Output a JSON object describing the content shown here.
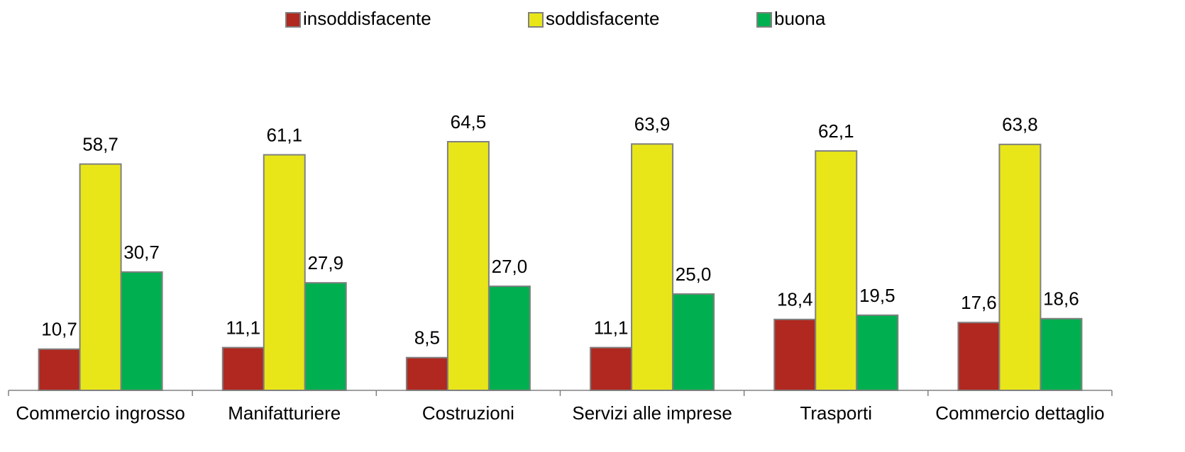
{
  "chart_data": {
    "type": "bar",
    "categories": [
      "Commercio ingrosso",
      "Manifatturiere",
      "Costruzioni",
      "Servizi alle imprese",
      "Trasporti",
      "Commercio dettaglio"
    ],
    "series": [
      {
        "name": "insoddisfacente",
        "color": "#b0281f",
        "values": [
          10.7,
          11.1,
          8.5,
          11.1,
          18.4,
          17.6
        ],
        "value_labels": [
          "10,7",
          "11,1",
          "8,5",
          "11,1",
          "18,4",
          "17,6"
        ]
      },
      {
        "name": "soddisfacente",
        "color": "#e8e619",
        "values": [
          58.7,
          61.1,
          64.5,
          63.9,
          62.1,
          63.8
        ],
        "value_labels": [
          "58,7",
          "61,1",
          "64,5",
          "63,9",
          "62,1",
          "63,8"
        ]
      },
      {
        "name": "buona",
        "color": "#00b050",
        "values": [
          30.7,
          27.9,
          27.0,
          25.0,
          19.5,
          18.6
        ],
        "value_labels": [
          "30,7",
          "27,9",
          "27,0",
          "25,0",
          "19,5",
          "18,6"
        ]
      }
    ],
    "legend": "top"
  }
}
